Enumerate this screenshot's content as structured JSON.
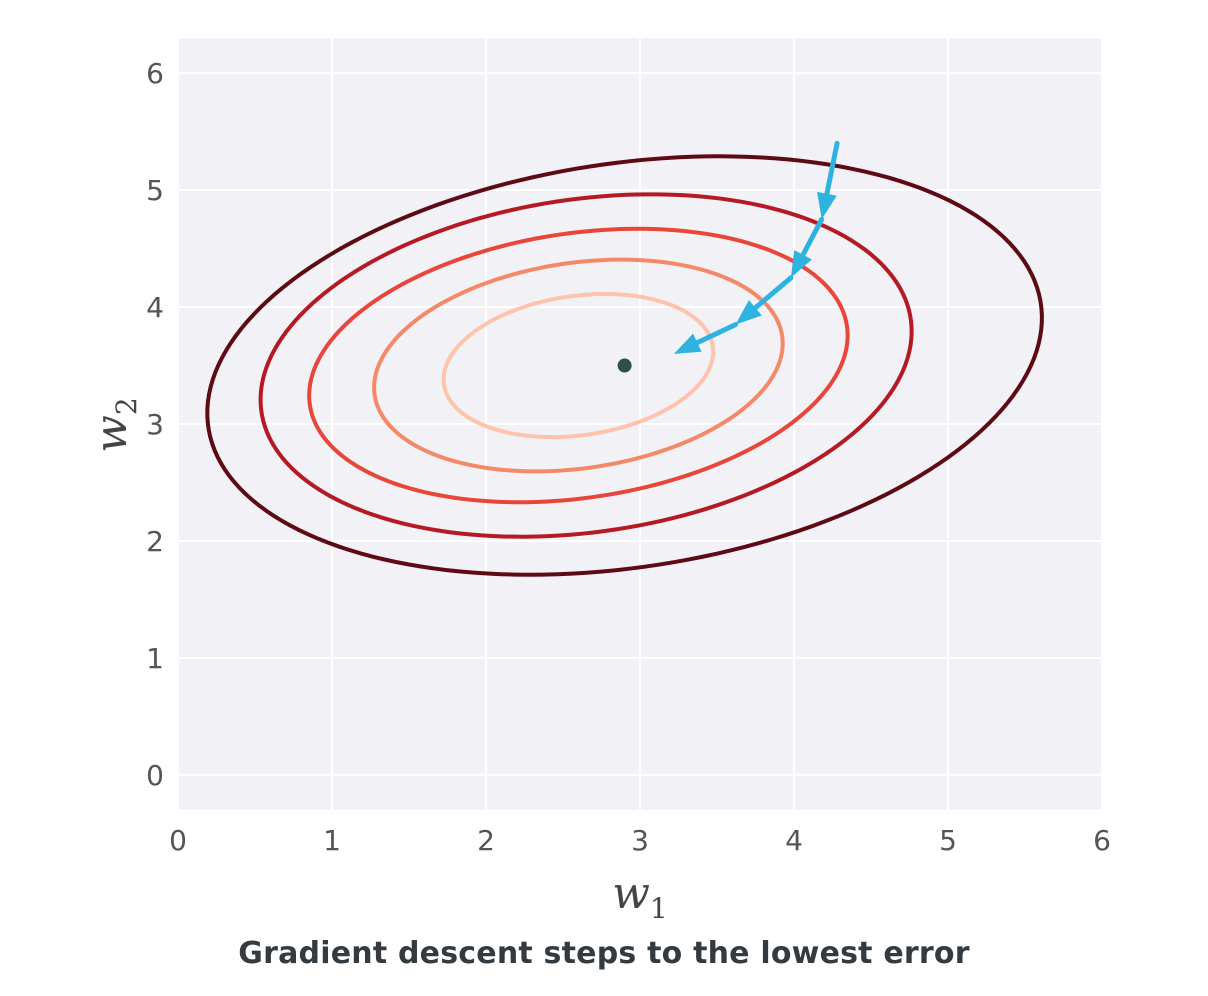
{
  "chart_data": {
    "type": "contour",
    "xlabel": "w",
    "xlabel_sub": "1",
    "ylabel": "w",
    "ylabel_sub": "2",
    "xlim": [
      0,
      6
    ],
    "ylim": [
      -0.3,
      6.3
    ],
    "xticks": [
      "0",
      "1",
      "2",
      "3",
      "4",
      "5",
      "6"
    ],
    "yticks": [
      "0",
      "1",
      "2",
      "3",
      "4",
      "5",
      "6"
    ],
    "grid": true,
    "background": "#f2f2f6",
    "minimum": {
      "x": 2.9,
      "y": 3.5,
      "color": "#2f4f4f"
    },
    "contours": [
      {
        "level": 1,
        "color": "#ffc2aa",
        "cx": 2.6,
        "cy": 3.5,
        "rx": 0.89,
        "ry": 0.59,
        "angle_deg": 14
      },
      {
        "level": 2,
        "color": "#f4896a",
        "cx": 2.6,
        "cy": 3.5,
        "rx": 1.35,
        "ry": 0.87,
        "angle_deg": 14
      },
      {
        "level": 3,
        "color": "#e8463a",
        "cx": 2.6,
        "cy": 3.5,
        "rx": 1.78,
        "ry": 1.12,
        "angle_deg": 14
      },
      {
        "level": 4,
        "color": "#b51a24",
        "cx": 2.65,
        "cy": 3.5,
        "rx": 2.15,
        "ry": 1.41,
        "angle_deg": 14
      },
      {
        "level": 5,
        "color": "#5e0a14",
        "cx": 2.9,
        "cy": 3.5,
        "rx": 2.76,
        "ry": 1.71,
        "angle_deg": 14
      }
    ],
    "descent_path": {
      "color": "#2eb3e0",
      "points": [
        {
          "x": 4.28,
          "y": 5.4
        },
        {
          "x": 4.18,
          "y": 4.75
        },
        {
          "x": 3.98,
          "y": 4.25
        },
        {
          "x": 3.62,
          "y": 3.85
        },
        {
          "x": 3.22,
          "y": 3.6
        }
      ]
    }
  },
  "caption": "Gradient descent steps to the lowest error"
}
